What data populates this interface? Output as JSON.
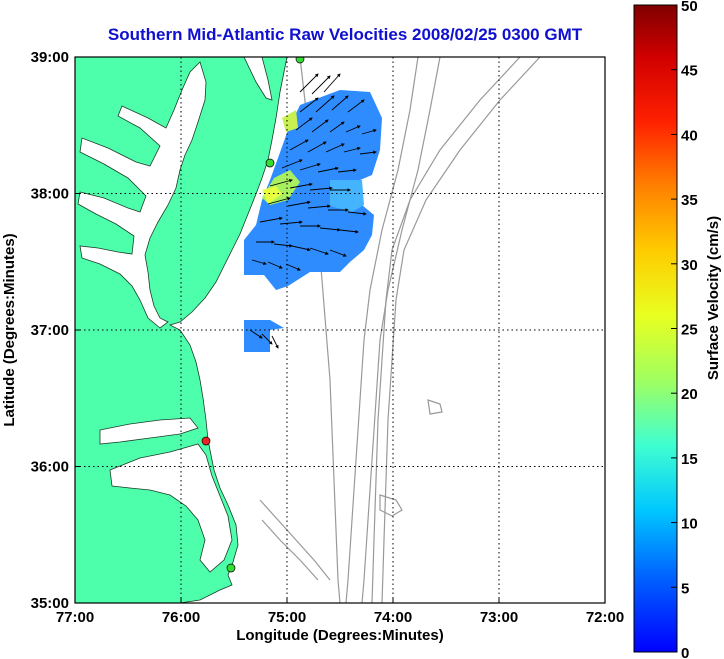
{
  "title": "Southern Mid-Atlantic Raw Velocities 2008/02/25 0300 GMT",
  "xlabel": "Longitude (Degrees:Minutes)",
  "ylabel": "Latitude (Degrees:Minutes)",
  "x_ticks": [
    "77:00",
    "76:00",
    "75:00",
    "74:00",
    "73:00",
    "72:00"
  ],
  "y_ticks": [
    "39:00",
    "38:00",
    "37:00",
    "36:00",
    "35:00"
  ],
  "colorbar": {
    "label": "Surface Velocity (cm/s)",
    "ticks": [
      "50",
      "45",
      "40",
      "35",
      "30",
      "25",
      "20",
      "15",
      "10",
      "5",
      "0"
    ],
    "min": 0,
    "max": 50,
    "colormap": "jet"
  },
  "colors": {
    "land": "#4dffaa",
    "title": "#1010d0",
    "bathymetry": "#999999",
    "current_field": "#2e8cff"
  },
  "chart_data": {
    "type": "map",
    "xlim": [
      -77,
      -72
    ],
    "ylim": [
      35,
      39
    ],
    "grid": true,
    "stations": [
      {
        "lon": -74.88,
        "lat": 39.0,
        "color": "#33dd33"
      },
      {
        "lon": -75.11,
        "lat": 38.22,
        "color": "#33dd33"
      },
      {
        "lon": -75.72,
        "lat": 36.18,
        "color": "#ee2222"
      },
      {
        "lon": -75.52,
        "lat": 35.25,
        "color": "#33dd33"
      }
    ]
  }
}
